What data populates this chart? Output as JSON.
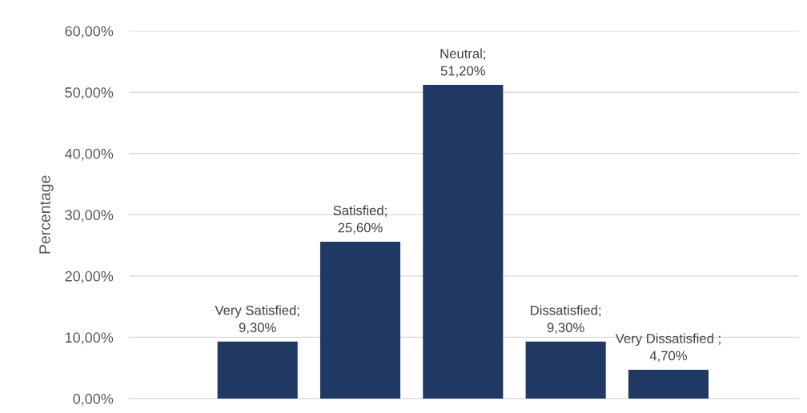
{
  "chart_data": {
    "type": "bar",
    "ylabel": "Percentage",
    "categories": [
      null,
      null,
      null,
      null,
      null
    ],
    "values": [
      9.3,
      25.6,
      51.2,
      9.3,
      4.7
    ],
    "value_labels": [
      "Very Satisfied; 9,30%",
      "Satisfied; 25,60%",
      "Neutral; 51,20%",
      "Dissatisfied; 9,30%",
      "Very Dissatisfied ; 4,70%"
    ],
    "color": "#203864",
    "ylim": [
      0,
      60
    ],
    "yticks": [
      {
        "value": 0,
        "label": "0,00%"
      },
      {
        "value": 10,
        "label": "10,00%"
      },
      {
        "value": 20,
        "label": "20,00%"
      },
      {
        "value": 30,
        "label": "30,00%"
      },
      {
        "value": 40,
        "label": "40,00%"
      },
      {
        "value": 50,
        "label": "50,00%"
      },
      {
        "value": 60,
        "label": "60,00%"
      }
    ],
    "grid": "y",
    "legend": false
  }
}
